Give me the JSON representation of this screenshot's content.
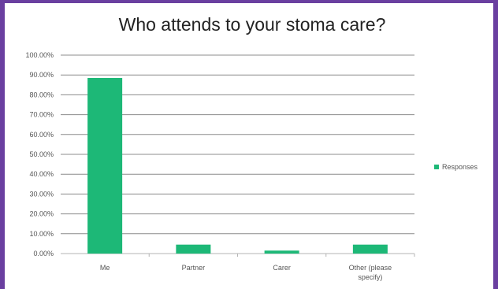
{
  "chart_data": {
    "type": "bar",
    "title": "Who attends to your stoma care?",
    "categories": [
      "Me",
      "Partner",
      "Carer",
      "Other (please specify)"
    ],
    "series": [
      {
        "name": "Responses",
        "values": [
          88.5,
          4.5,
          1.5,
          4.5
        ],
        "color": "#1db877"
      }
    ],
    "ylim": [
      0,
      100
    ],
    "yticks": [
      "0.00%",
      "10.00%",
      "20.00%",
      "30.00%",
      "40.00%",
      "50.00%",
      "60.00%",
      "70.00%",
      "80.00%",
      "90.00%",
      "100.00%"
    ],
    "grid": true,
    "legend": "right"
  },
  "colors": {
    "frame": "#6a3fa0",
    "bar": "#1db877",
    "grid": "#8c8c8c"
  }
}
